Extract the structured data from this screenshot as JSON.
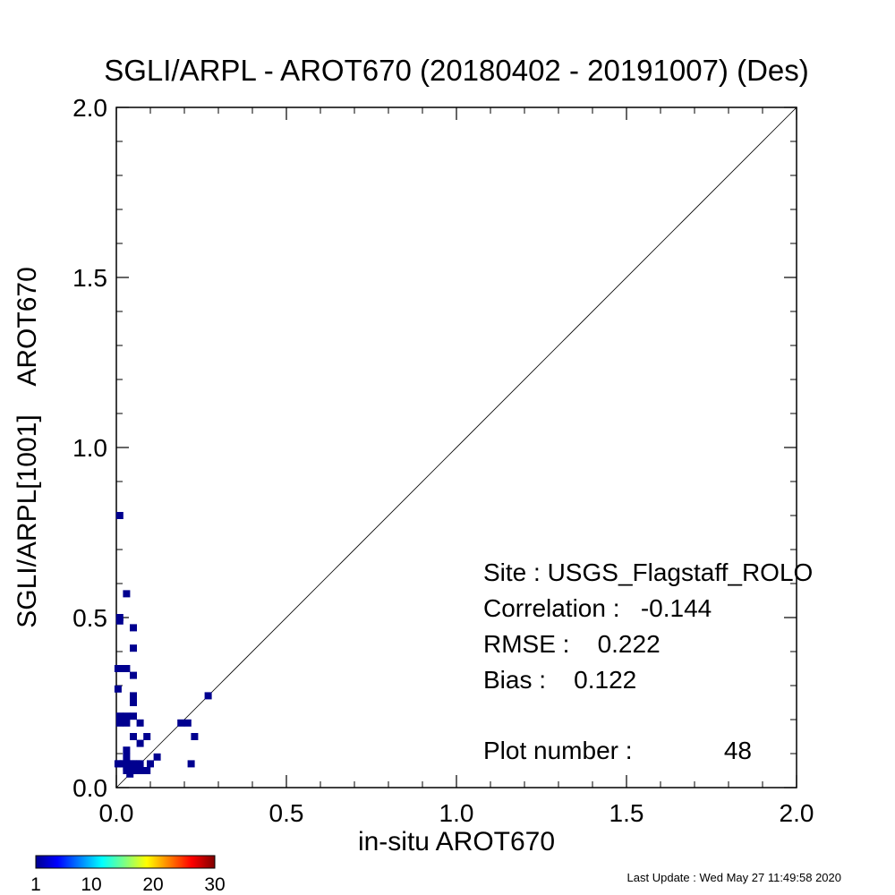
{
  "chart_data": {
    "type": "scatter",
    "title": "SGLI/ARPL - AROT670 (20180402 - 20191007) (Des)",
    "xlabel": "in-situ AROT670",
    "ylabel": "SGLI/ARPL[1001]    AROT670",
    "xlim": [
      0.0,
      2.0
    ],
    "ylim": [
      0.0,
      2.0
    ],
    "x_ticks": [
      "0.0",
      "0.5",
      "1.0",
      "1.5",
      "2.0"
    ],
    "y_ticks": [
      "0.0",
      "0.5",
      "1.0",
      "1.5",
      "2.0"
    ],
    "grid": false,
    "reference_line": "1:1",
    "point_color": "#00008f",
    "points": [
      [
        0.01,
        0.8
      ],
      [
        0.03,
        0.57
      ],
      [
        0.01,
        0.5
      ],
      [
        0.01,
        0.49
      ],
      [
        0.05,
        0.47
      ],
      [
        0.05,
        0.41
      ],
      [
        0.005,
        0.35
      ],
      [
        0.02,
        0.35
      ],
      [
        0.03,
        0.35
      ],
      [
        0.05,
        0.33
      ],
      [
        0.005,
        0.29
      ],
      [
        0.05,
        0.27
      ],
      [
        0.05,
        0.25
      ],
      [
        0.27,
        0.27
      ],
      [
        0.01,
        0.21
      ],
      [
        0.03,
        0.21
      ],
      [
        0.05,
        0.21
      ],
      [
        0.01,
        0.19
      ],
      [
        0.03,
        0.19
      ],
      [
        0.07,
        0.19
      ],
      [
        0.19,
        0.19
      ],
      [
        0.21,
        0.19
      ],
      [
        0.05,
        0.15
      ],
      [
        0.09,
        0.15
      ],
      [
        0.23,
        0.15
      ],
      [
        0.07,
        0.13
      ],
      [
        0.03,
        0.11
      ],
      [
        0.03,
        0.09
      ],
      [
        0.12,
        0.09
      ],
      [
        0.005,
        0.07
      ],
      [
        0.01,
        0.07
      ],
      [
        0.02,
        0.07
      ],
      [
        0.03,
        0.07
      ],
      [
        0.04,
        0.07
      ],
      [
        0.05,
        0.07
      ],
      [
        0.06,
        0.07
      ],
      [
        0.07,
        0.07
      ],
      [
        0.1,
        0.07
      ],
      [
        0.22,
        0.07
      ],
      [
        0.03,
        0.06
      ],
      [
        0.04,
        0.06
      ],
      [
        0.03,
        0.05
      ],
      [
        0.05,
        0.05
      ],
      [
        0.06,
        0.05
      ],
      [
        0.07,
        0.05
      ],
      [
        0.08,
        0.05
      ],
      [
        0.09,
        0.05
      ],
      [
        0.04,
        0.04
      ]
    ],
    "stats": {
      "site": "Site : USGS_Flagstaff_ROLO",
      "correlation": "Correlation :   -0.144",
      "rmse": "RMSE :    0.222",
      "bias": "Bias :    0.122",
      "plot_number": "Plot number :",
      "plot_number_value": "48"
    },
    "colorbar": {
      "range": [
        1,
        30
      ],
      "tick_labels": [
        "1",
        "10",
        "20",
        "30"
      ],
      "tick_values": [
        1,
        10,
        20,
        30
      ],
      "colormap": "jet"
    },
    "last_update": "Last Update : Wed May 27 11:49:58 2020"
  }
}
